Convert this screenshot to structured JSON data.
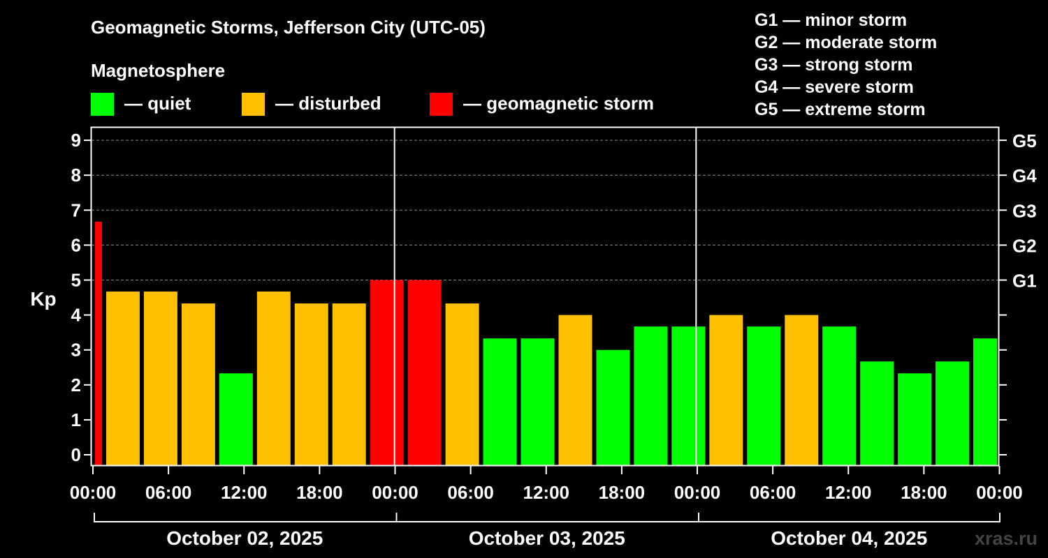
{
  "chart_data": {
    "type": "bar",
    "title": "Geomagnetic Storms, Jefferson City (UTC-05)",
    "subtitle": "Magnetosphere",
    "ylabel": "Kp",
    "ylim": [
      0,
      9
    ],
    "yticks": [
      "0",
      "1",
      "2",
      "3",
      "4",
      "5",
      "6",
      "7",
      "8",
      "9"
    ],
    "right_ticks": [
      {
        "kp": 5,
        "label": "G1"
      },
      {
        "kp": 6,
        "label": "G2"
      },
      {
        "kp": 7,
        "label": "G3"
      },
      {
        "kp": 8,
        "label": "G4"
      },
      {
        "kp": 9,
        "label": "G5"
      }
    ],
    "legend": [
      {
        "label": "— quiet",
        "color": "#00ff00"
      },
      {
        "label": "— disturbed",
        "color": "#ffc000"
      },
      {
        "label": "— geomagnetic storm",
        "color": "#ff0000"
      }
    ],
    "storm_scale": [
      "G1 — minor storm",
      "G2 — moderate storm",
      "G3 — strong storm",
      "G4 — severe storm",
      "G5 — extreme storm"
    ],
    "xticks": [
      "00:00",
      "06:00",
      "12:00",
      "18:00",
      "00:00",
      "06:00",
      "12:00",
      "18:00",
      "00:00",
      "06:00",
      "12:00",
      "18:00",
      "00:00"
    ],
    "xtick_hours": [
      0,
      6,
      12,
      18,
      24,
      30,
      36,
      42,
      48,
      54,
      60,
      66,
      72
    ],
    "x_range_hours": [
      0,
      72
    ],
    "day_dividers_hours": [
      24,
      48
    ],
    "dates": [
      "October 02, 2025",
      "October 03, 2025",
      "October 04, 2025"
    ],
    "grid": "dashed horizontal",
    "bars": [
      {
        "start": 0,
        "end": 1,
        "kp": 6.67,
        "color": "#ff0000"
      },
      {
        "start": 1,
        "end": 4,
        "kp": 4.67,
        "color": "#ffc000"
      },
      {
        "start": 4,
        "end": 7,
        "kp": 4.67,
        "color": "#ffc000"
      },
      {
        "start": 7,
        "end": 10,
        "kp": 4.33,
        "color": "#ffc000"
      },
      {
        "start": 10,
        "end": 13,
        "kp": 2.33,
        "color": "#00ff00"
      },
      {
        "start": 13,
        "end": 16,
        "kp": 4.67,
        "color": "#ffc000"
      },
      {
        "start": 16,
        "end": 19,
        "kp": 4.33,
        "color": "#ffc000"
      },
      {
        "start": 19,
        "end": 22,
        "kp": 4.33,
        "color": "#ffc000"
      },
      {
        "start": 22,
        "end": 25,
        "kp": 5.0,
        "color": "#ff0000"
      },
      {
        "start": 25,
        "end": 28,
        "kp": 5.0,
        "color": "#ff0000"
      },
      {
        "start": 28,
        "end": 31,
        "kp": 4.33,
        "color": "#ffc000"
      },
      {
        "start": 31,
        "end": 34,
        "kp": 3.33,
        "color": "#00ff00"
      },
      {
        "start": 34,
        "end": 37,
        "kp": 3.33,
        "color": "#00ff00"
      },
      {
        "start": 37,
        "end": 40,
        "kp": 4.0,
        "color": "#ffc000"
      },
      {
        "start": 40,
        "end": 43,
        "kp": 3.0,
        "color": "#00ff00"
      },
      {
        "start": 43,
        "end": 46,
        "kp": 3.67,
        "color": "#00ff00"
      },
      {
        "start": 46,
        "end": 49,
        "kp": 3.67,
        "color": "#00ff00"
      },
      {
        "start": 49,
        "end": 52,
        "kp": 4.0,
        "color": "#ffc000"
      },
      {
        "start": 52,
        "end": 55,
        "kp": 3.67,
        "color": "#00ff00"
      },
      {
        "start": 55,
        "end": 58,
        "kp": 4.0,
        "color": "#ffc000"
      },
      {
        "start": 58,
        "end": 61,
        "kp": 3.67,
        "color": "#00ff00"
      },
      {
        "start": 61,
        "end": 64,
        "kp": 2.67,
        "color": "#00ff00"
      },
      {
        "start": 64,
        "end": 67,
        "kp": 2.33,
        "color": "#00ff00"
      },
      {
        "start": 67,
        "end": 70,
        "kp": 2.67,
        "color": "#00ff00"
      },
      {
        "start": 70,
        "end": 72,
        "kp": 3.33,
        "color": "#00ff00"
      }
    ],
    "watermark": "xras.ru"
  }
}
